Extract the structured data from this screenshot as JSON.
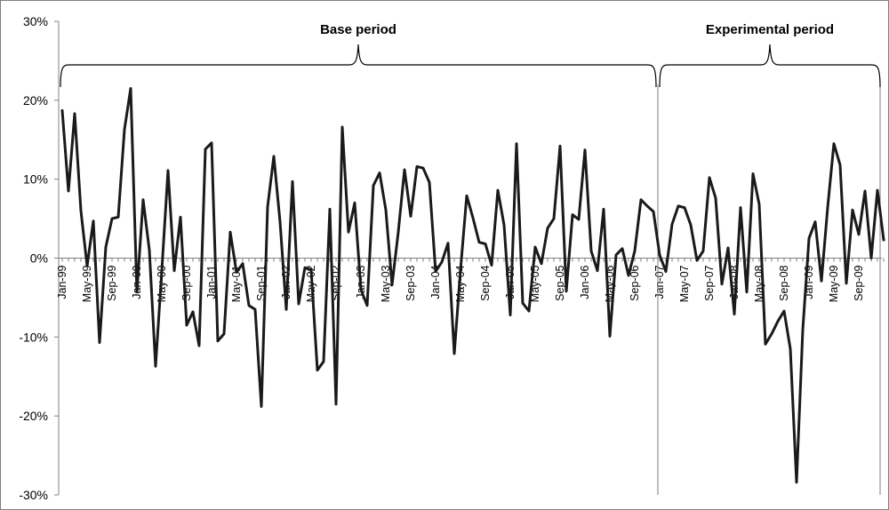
{
  "chart_data": {
    "type": "line",
    "title": "",
    "xlabel": "",
    "ylabel": "",
    "ylim": [
      -30,
      30
    ],
    "yticks": [
      "30%",
      "20%",
      "10%",
      "0%",
      "-10%",
      "-20%",
      "-30%"
    ],
    "x_tick_labels": [
      "Jan-99",
      "May-99",
      "Sep-99",
      "Jan-00",
      "May-00",
      "Sep-00",
      "Jan-01",
      "May-01",
      "Sep-01",
      "Jan-02",
      "May-02",
      "Sep-02",
      "Jan-03",
      "May-03",
      "Sep-03",
      "Jan-04",
      "May-04",
      "Sep-04",
      "Jan-05",
      "May-05",
      "Sep-05",
      "Jan-06",
      "May-06",
      "Sep-06",
      "Jan-07",
      "May-07",
      "Sep-07",
      "Jan-08",
      "May-08",
      "Sep-08",
      "Jan-09",
      "May-09",
      "Sep-09"
    ],
    "x_start": "Jan-99",
    "x_end": "Dec-09",
    "grid": false,
    "series": [
      {
        "color": "#1a1a1a",
        "values": [
          18.7,
          8.5,
          18.3,
          6.0,
          -1.0,
          4.7,
          -10.7,
          1.4,
          5.0,
          5.2,
          16.3,
          21.5,
          -4.3,
          7.4,
          1.0,
          -13.7,
          -1.6,
          11.1,
          -1.6,
          5.2,
          -8.5,
          -6.8,
          -11.1,
          13.8,
          14.6,
          -10.5,
          -9.6,
          3.3,
          -1.8,
          -0.7,
          -6.0,
          -6.5,
          -18.8,
          6.5,
          12.9,
          4.6,
          -6.5,
          9.7,
          -5.8,
          -1.2,
          -1.5,
          -14.2,
          -13.1,
          6.2,
          -18.5,
          16.6,
          3.3,
          7.0,
          -4.0,
          -6.0,
          9.2,
          10.8,
          6.1,
          -3.4,
          3.3,
          11.2,
          5.3,
          11.6,
          11.4,
          9.6,
          -1.7,
          -0.5,
          1.9,
          -12.1,
          -1.5,
          7.9,
          5.1,
          2.0,
          1.8,
          -0.9,
          8.6,
          4.2,
          -7.2,
          14.5,
          -5.7,
          -6.7,
          1.4,
          -0.7,
          3.8,
          5.0,
          14.2,
          -4.2,
          5.5,
          4.9,
          13.7,
          0.9,
          -1.6,
          6.2,
          -9.9,
          0.4,
          1.2,
          -2.2,
          0.9,
          7.4,
          6.6,
          5.9,
          0.4,
          -1.7,
          4.3,
          6.6,
          6.4,
          4.2,
          -0.3,
          0.9,
          10.2,
          7.6,
          -3.3,
          1.3,
          -7.1,
          6.4,
          -4.3,
          10.7,
          6.8,
          -10.9,
          -9.6,
          -8.0,
          -6.7,
          -11.5,
          -28.4,
          -9.1,
          2.5,
          4.6,
          -2.9,
          6.4,
          14.5,
          11.8,
          -3.2,
          6.1,
          3.0,
          8.5,
          0.0,
          8.6,
          2.3
        ]
      }
    ],
    "annotations": [
      {
        "label": "Base period",
        "from": "Jan-99",
        "to": "Dec-06"
      },
      {
        "label": "Experimental period",
        "from": "Jan-07",
        "to": "Dec-09"
      }
    ]
  }
}
